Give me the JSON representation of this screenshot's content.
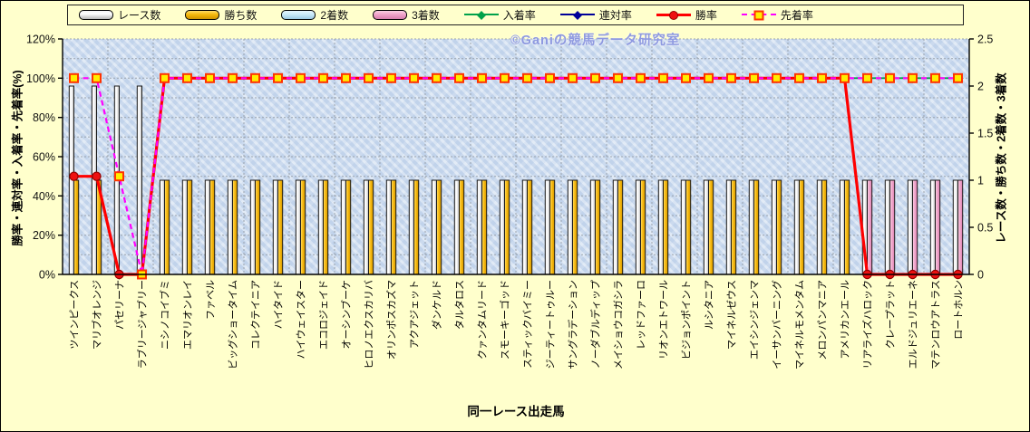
{
  "page": {
    "background": "#FFFFCC"
  },
  "watermark": "©Ganiの競馬データ研究室",
  "legend": {
    "items": [
      {
        "key": "races",
        "label": "レース数"
      },
      {
        "key": "wins",
        "label": "勝ち数"
      },
      {
        "key": "seconds",
        "label": "2着数"
      },
      {
        "key": "thirds",
        "label": "3着数"
      },
      {
        "key": "place_rate",
        "label": "入着率"
      },
      {
        "key": "quinella_rate",
        "label": "連対率"
      },
      {
        "key": "win_rate",
        "label": "勝率"
      },
      {
        "key": "ahead_rate",
        "label": "先着率"
      }
    ]
  },
  "chart_data": {
    "type": "combo-bar-line",
    "categories": [
      "ツインピークス",
      "マリブオレンジ",
      "パセリーナ",
      "ラブリージャブリー",
      "ニシノコイブミ",
      "エマリオンレイ",
      "ファベル",
      "ビッグショータイム",
      "コレクテイニア",
      "ハイタイド",
      "ハイウェイスター",
      "エコロジェイド",
      "オーシンブーケ",
      "ヒロノエクスカリバ",
      "オリンポスカズマ",
      "アクアジェット",
      "ダンケルド",
      "タルタロス",
      "クァンタムリード",
      "スモーキーゴッド",
      "スティックバイミー",
      "ジーティートゥルー",
      "サングラデーション",
      "ノーダブルディップ",
      "メイショウコガシラ",
      "レッドファーロ",
      "リオンエトワール",
      "ビジョンポイント",
      "ルシタニア",
      "マイネルゼウス",
      "エイシンジェンマ",
      "イーサンバーニング",
      "マイネルモメンタム",
      "メロンパンマニア",
      "アメリカンエール",
      "リアライズハロック",
      "クレープラット",
      "エルドジュリエーネ",
      "マテンロウアトラス",
      "ロートホルン"
    ],
    "x_axis": {
      "title": "同一レース出走馬"
    },
    "left_axis": {
      "title": "勝率・連対率・入着率・先着率(%)",
      "min": 0,
      "max": 120,
      "ticks": [
        "0%",
        "20%",
        "40%",
        "60%",
        "80%",
        "100%",
        "120%"
      ],
      "tick_values": [
        0,
        20,
        40,
        60,
        80,
        100,
        120
      ]
    },
    "right_axis": {
      "title": "レース数・勝ち数・2着数・3着数",
      "min": 0,
      "max": 2.5,
      "ticks": [
        "0",
        "0.5",
        "1",
        "1.5",
        "2",
        "2.5"
      ],
      "tick_values": [
        0,
        0.5,
        1,
        1.5,
        2,
        2.5
      ]
    },
    "grid": {
      "h_step_left_pct": 10,
      "v_step_categories": 2,
      "on": true
    },
    "series": [
      {
        "key": "races",
        "name": "レース数",
        "type": "bar",
        "axis": "right",
        "color": "#FFFFFF",
        "values": [
          2,
          2,
          2,
          2,
          1,
          1,
          1,
          1,
          1,
          1,
          1,
          1,
          1,
          1,
          1,
          1,
          1,
          1,
          1,
          1,
          1,
          1,
          1,
          1,
          1,
          1,
          1,
          1,
          1,
          1,
          1,
          1,
          1,
          1,
          1,
          1,
          1,
          1,
          1,
          1
        ]
      },
      {
        "key": "wins",
        "name": "勝ち数",
        "type": "bar",
        "axis": "right",
        "color": "#F6B80C",
        "values": [
          1,
          1,
          0,
          0,
          1,
          1,
          1,
          1,
          1,
          1,
          1,
          1,
          1,
          1,
          1,
          1,
          1,
          1,
          1,
          1,
          1,
          1,
          1,
          1,
          1,
          1,
          1,
          1,
          1,
          1,
          1,
          1,
          1,
          1,
          1,
          0,
          0,
          0,
          0,
          0
        ]
      },
      {
        "key": "seconds",
        "name": "2着数",
        "type": "bar",
        "axis": "right",
        "color": "#C9E9F8",
        "values": [
          0,
          0,
          0,
          0,
          0,
          0,
          0,
          0,
          0,
          0,
          0,
          0,
          0,
          0,
          0,
          0,
          0,
          0,
          0,
          0,
          0,
          0,
          0,
          0,
          0,
          0,
          0,
          0,
          0,
          0,
          0,
          0,
          0,
          0,
          0,
          0,
          0,
          0,
          0,
          0
        ]
      },
      {
        "key": "thirds",
        "name": "3着数",
        "type": "bar",
        "axis": "right",
        "color": "#F0A3C9",
        "values": [
          0,
          0,
          0,
          0,
          0,
          0,
          0,
          0,
          0,
          0,
          0,
          0,
          0,
          0,
          0,
          0,
          0,
          0,
          0,
          0,
          0,
          0,
          0,
          0,
          0,
          0,
          0,
          0,
          0,
          0,
          0,
          0,
          0,
          0,
          0,
          1,
          1,
          1,
          1,
          1
        ]
      },
      {
        "key": "place_rate",
        "name": "入着率",
        "type": "line",
        "axis": "left",
        "color": "#00A14B",
        "marker": "diamond",
        "values": [
          50,
          50,
          0,
          0,
          100,
          100,
          100,
          100,
          100,
          100,
          100,
          100,
          100,
          100,
          100,
          100,
          100,
          100,
          100,
          100,
          100,
          100,
          100,
          100,
          100,
          100,
          100,
          100,
          100,
          100,
          100,
          100,
          100,
          100,
          100,
          100,
          100,
          100,
          100,
          100
        ]
      },
      {
        "key": "quinella_rate",
        "name": "連対率",
        "type": "line",
        "axis": "left",
        "color": "#000099",
        "marker": "diamond",
        "values": [
          50,
          50,
          0,
          0,
          100,
          100,
          100,
          100,
          100,
          100,
          100,
          100,
          100,
          100,
          100,
          100,
          100,
          100,
          100,
          100,
          100,
          100,
          100,
          100,
          100,
          100,
          100,
          100,
          100,
          100,
          100,
          100,
          100,
          100,
          100,
          0,
          0,
          0,
          0,
          0
        ]
      },
      {
        "key": "win_rate",
        "name": "勝率",
        "type": "line",
        "axis": "left",
        "color": "#FF0000",
        "marker": "circle",
        "values": [
          50,
          50,
          0,
          0,
          100,
          100,
          100,
          100,
          100,
          100,
          100,
          100,
          100,
          100,
          100,
          100,
          100,
          100,
          100,
          100,
          100,
          100,
          100,
          100,
          100,
          100,
          100,
          100,
          100,
          100,
          100,
          100,
          100,
          100,
          100,
          0,
          0,
          0,
          0,
          0
        ]
      },
      {
        "key": "ahead_rate",
        "name": "先着率",
        "type": "line-dashed",
        "axis": "left",
        "color": "#FF00FF",
        "marker": "square",
        "values": [
          100,
          100,
          50,
          0,
          100,
          100,
          100,
          100,
          100,
          100,
          100,
          100,
          100,
          100,
          100,
          100,
          100,
          100,
          100,
          100,
          100,
          100,
          100,
          100,
          100,
          100,
          100,
          100,
          100,
          100,
          100,
          100,
          100,
          100,
          100,
          100,
          100,
          100,
          100,
          100
        ]
      }
    ]
  }
}
